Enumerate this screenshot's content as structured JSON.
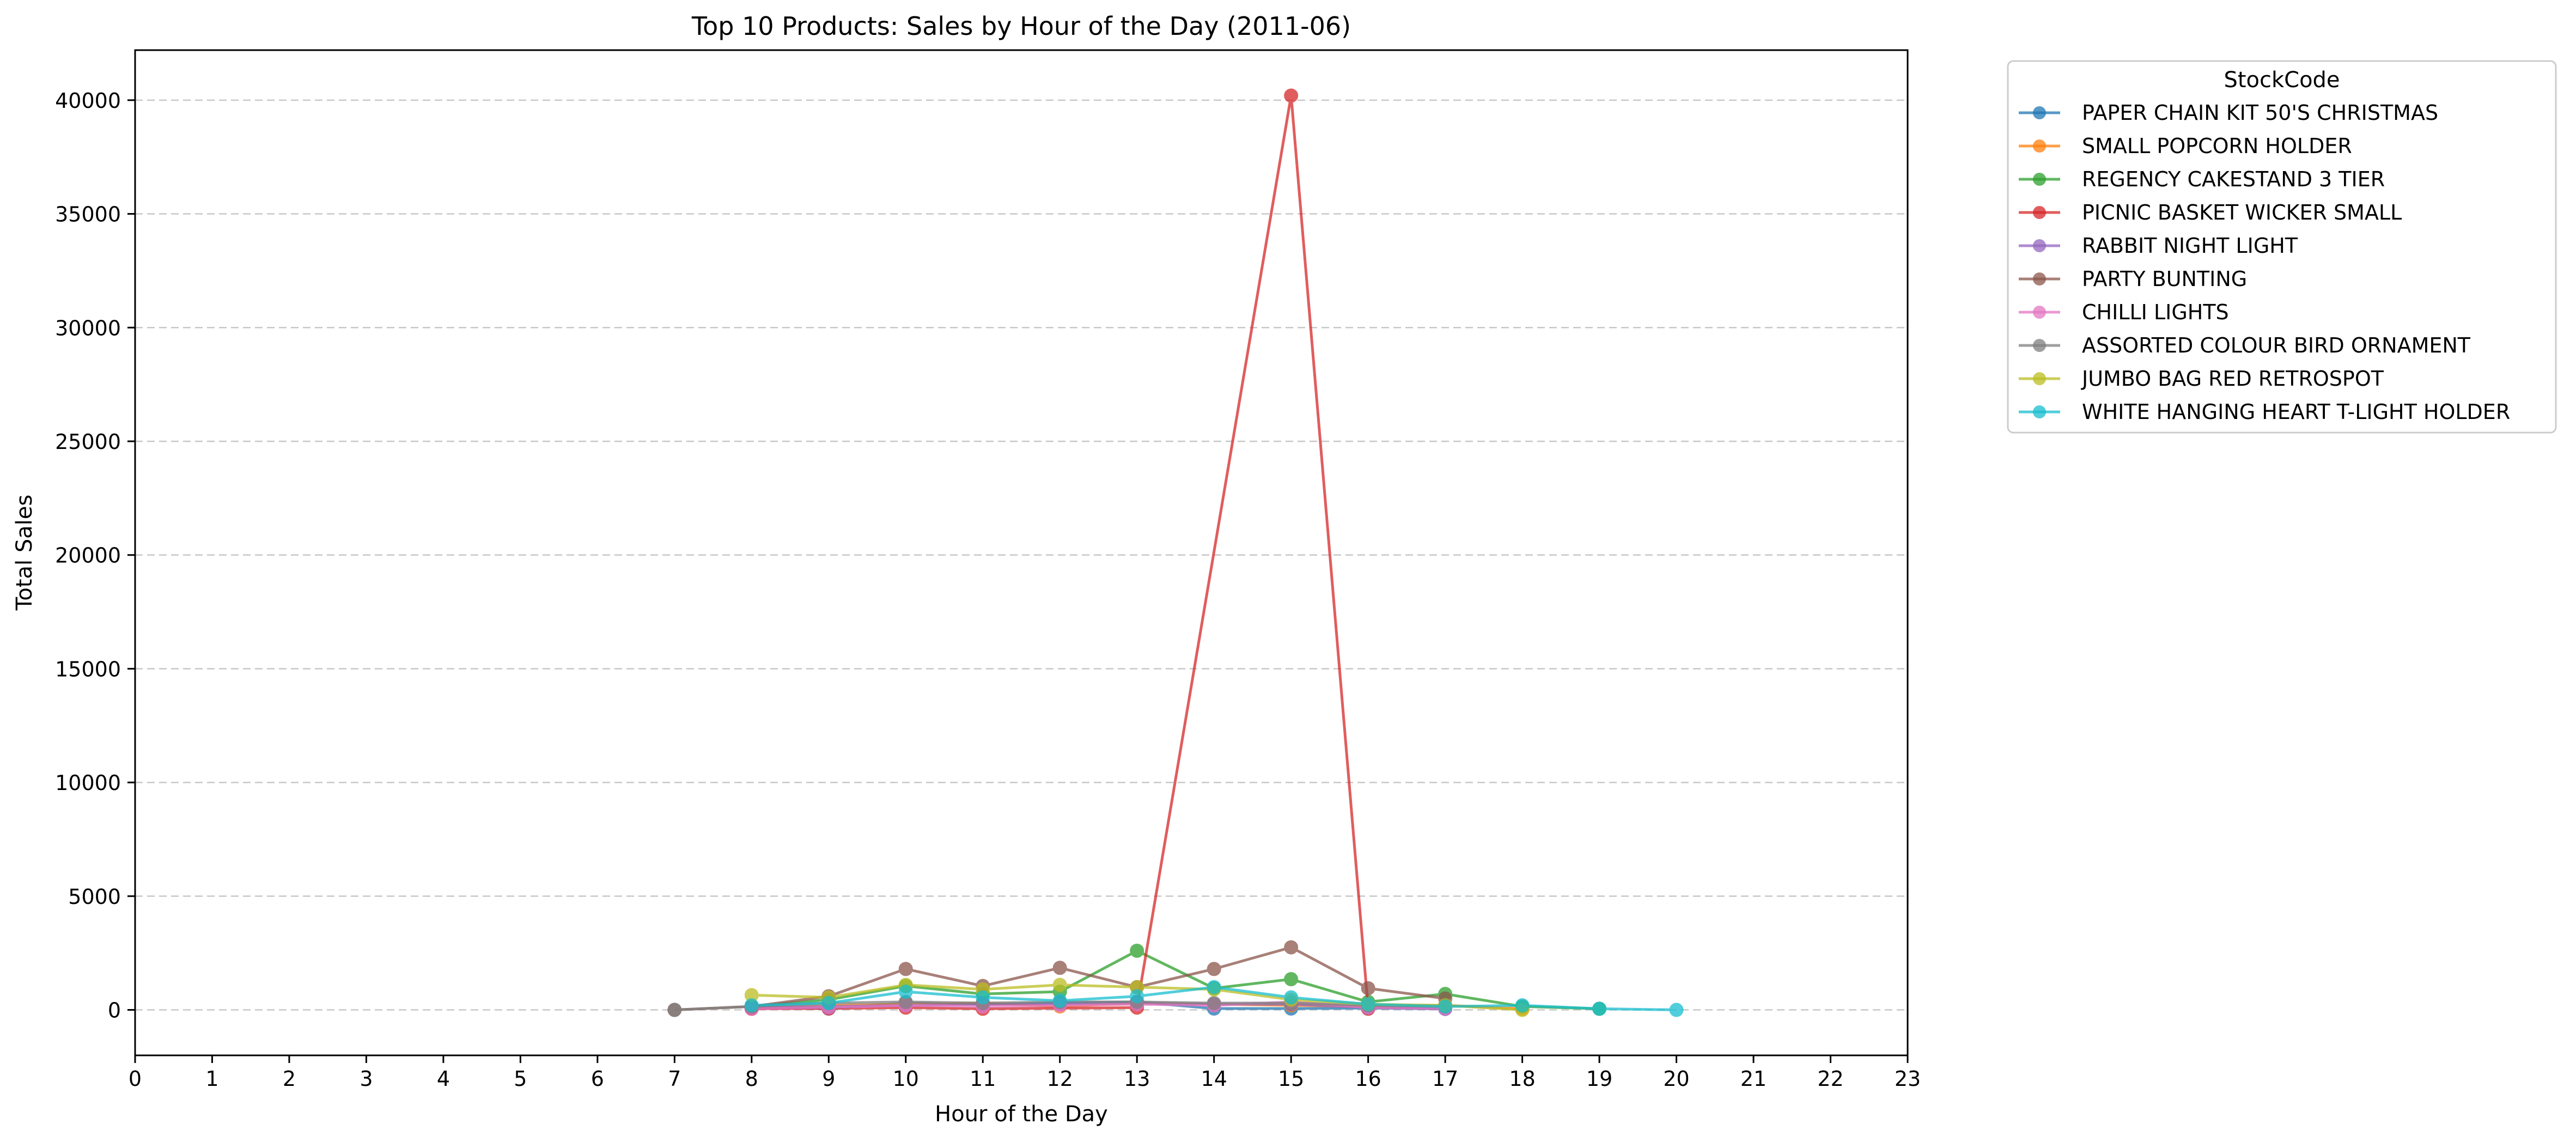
{
  "chart_data": {
    "type": "line",
    "title": "Top 10 Products: Sales by Hour of the Day (2011-06)",
    "xlabel": "Hour of the Day",
    "ylabel": "Total Sales",
    "xlim": [
      0,
      23
    ],
    "ylim": [
      -2000,
      42200
    ],
    "xticks": [
      0,
      1,
      2,
      3,
      4,
      5,
      6,
      7,
      8,
      9,
      10,
      11,
      12,
      13,
      14,
      15,
      16,
      17,
      18,
      19,
      20,
      21,
      22,
      23
    ],
    "yticks": [
      0,
      5000,
      10000,
      15000,
      20000,
      25000,
      30000,
      35000,
      40000
    ],
    "grid": "y-dashed",
    "legend": {
      "title": "StockCode",
      "placement": "outside-top-right"
    },
    "series": [
      {
        "name": "PAPER CHAIN KIT 50'S CHRISTMAS",
        "color": "#1f77b4",
        "points": [
          [
            8,
            120
          ],
          [
            9,
            60
          ],
          [
            10,
            300
          ],
          [
            11,
            250
          ],
          [
            12,
            300
          ],
          [
            13,
            350
          ],
          [
            14,
            60
          ],
          [
            15,
            60
          ],
          [
            16,
            80
          ],
          [
            17,
            40
          ]
        ]
      },
      {
        "name": "SMALL POPCORN HOLDER",
        "color": "#ff7f0e",
        "points": [
          [
            8,
            50
          ],
          [
            9,
            200
          ],
          [
            10,
            250
          ],
          [
            11,
            300
          ],
          [
            12,
            150
          ],
          [
            13,
            300
          ],
          [
            14,
            250
          ],
          [
            15,
            200
          ],
          [
            16,
            150
          ],
          [
            17,
            200
          ],
          [
            18,
            50
          ]
        ]
      },
      {
        "name": "REGENCY CAKESTAND 3 TIER",
        "color": "#2ca02c",
        "points": [
          [
            8,
            150
          ],
          [
            9,
            450
          ],
          [
            10,
            1050
          ],
          [
            11,
            700
          ],
          [
            12,
            800
          ],
          [
            13,
            2600
          ],
          [
            14,
            950
          ],
          [
            15,
            1350
          ],
          [
            16,
            350
          ],
          [
            17,
            700
          ],
          [
            18,
            150
          ],
          [
            19,
            50
          ]
        ]
      },
      {
        "name": "PICNIC BASKET WICKER SMALL",
        "color": "#d62728",
        "points": [
          [
            8,
            50
          ],
          [
            9,
            60
          ],
          [
            10,
            100
          ],
          [
            11,
            50
          ],
          [
            13,
            100
          ],
          [
            15,
            40200
          ],
          [
            16,
            50
          ]
        ]
      },
      {
        "name": "RABBIT NIGHT LIGHT",
        "color": "#9467bd",
        "points": [
          [
            8,
            100
          ],
          [
            9,
            150
          ],
          [
            10,
            200
          ],
          [
            11,
            250
          ],
          [
            12,
            250
          ],
          [
            13,
            300
          ],
          [
            14,
            250
          ],
          [
            15,
            250
          ],
          [
            16,
            100
          ],
          [
            17,
            50
          ]
        ]
      },
      {
        "name": "PARTY BUNTING",
        "color": "#8c564b",
        "points": [
          [
            7,
            0
          ],
          [
            8,
            150
          ],
          [
            9,
            600
          ],
          [
            10,
            1800
          ],
          [
            11,
            1050
          ],
          [
            12,
            1850
          ],
          [
            13,
            1000
          ],
          [
            14,
            1800
          ],
          [
            15,
            2750
          ],
          [
            16,
            950
          ],
          [
            17,
            500
          ]
        ]
      },
      {
        "name": "CHILLI LIGHTS",
        "color": "#e377c2",
        "points": [
          [
            8,
            50
          ],
          [
            9,
            100
          ],
          [
            10,
            200
          ],
          [
            11,
            150
          ],
          [
            12,
            200
          ],
          [
            13,
            250
          ],
          [
            14,
            200
          ],
          [
            15,
            350
          ],
          [
            16,
            100
          ],
          [
            17,
            50
          ]
        ]
      },
      {
        "name": "ASSORTED COLOUR BIRD ORNAMENT",
        "color": "#7f7f7f",
        "points": [
          [
            7,
            0
          ],
          [
            8,
            150
          ],
          [
            9,
            300
          ],
          [
            10,
            350
          ],
          [
            11,
            300
          ],
          [
            12,
            350
          ],
          [
            13,
            350
          ],
          [
            14,
            300
          ],
          [
            15,
            300
          ],
          [
            16,
            200
          ],
          [
            17,
            150
          ]
        ]
      },
      {
        "name": "JUMBO BAG RED RETROSPOT",
        "color": "#bcbd22",
        "points": [
          [
            8,
            650
          ],
          [
            9,
            550
          ],
          [
            10,
            1100
          ],
          [
            11,
            900
          ],
          [
            12,
            1100
          ],
          [
            13,
            1000
          ],
          [
            14,
            900
          ],
          [
            15,
            450
          ],
          [
            16,
            250
          ],
          [
            17,
            200
          ],
          [
            18,
            0
          ]
        ]
      },
      {
        "name": "WHITE HANGING HEART T-LIGHT HOLDER",
        "color": "#17becf",
        "points": [
          [
            8,
            200
          ],
          [
            9,
            300
          ],
          [
            10,
            800
          ],
          [
            11,
            550
          ],
          [
            12,
            400
          ],
          [
            13,
            600
          ],
          [
            14,
            1000
          ],
          [
            15,
            550
          ],
          [
            16,
            250
          ],
          [
            17,
            150
          ],
          [
            18,
            200
          ],
          [
            19,
            50
          ],
          [
            20,
            0
          ]
        ]
      }
    ]
  }
}
